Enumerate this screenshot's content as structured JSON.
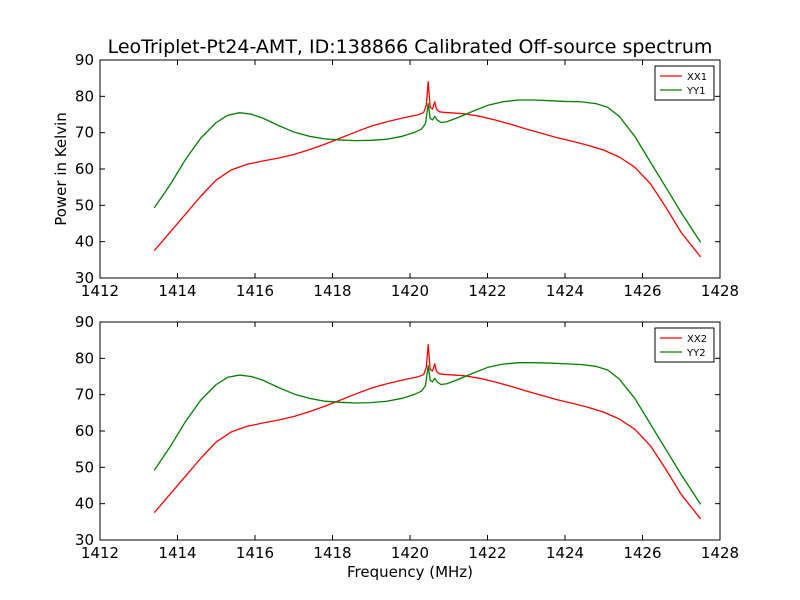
{
  "chart_data": {
    "title": "LeoTriplet-Pt24-AMT, ID:138866 Calibrated Off-source spectrum",
    "panels": [
      {
        "type": "line",
        "xlabel": "",
        "ylabel": "Power in Kelvin",
        "xlim": [
          1412,
          1428
        ],
        "ylim": [
          30,
          90
        ],
        "xticks": [
          1412,
          1414,
          1416,
          1418,
          1420,
          1422,
          1424,
          1426,
          1428
        ],
        "yticks": [
          30,
          40,
          50,
          60,
          70,
          80,
          90
        ],
        "legend": "top-right",
        "series": [
          {
            "name": "XX1",
            "color": "#ff0000",
            "x": [
              1413.4,
              1413.8,
              1414.2,
              1414.6,
              1415.0,
              1415.4,
              1415.8,
              1416.2,
              1416.6,
              1417.0,
              1417.4,
              1417.8,
              1418.2,
              1418.6,
              1419.0,
              1419.4,
              1419.8,
              1420.2,
              1420.35,
              1420.42,
              1420.47,
              1420.52,
              1420.58,
              1420.64,
              1420.68,
              1420.75,
              1420.85,
              1421.0,
              1421.4,
              1421.8,
              1422.2,
              1422.6,
              1423.0,
              1423.4,
              1423.8,
              1424.2,
              1424.6,
              1425.0,
              1425.4,
              1425.8,
              1426.2,
              1426.6,
              1427.0,
              1427.5
            ],
            "y": [
              37.5,
              42.5,
              47.5,
              52.5,
              57.0,
              59.8,
              61.3,
              62.2,
              63.0,
              64.0,
              65.3,
              66.8,
              68.5,
              70.2,
              71.8,
              73.0,
              74.0,
              74.9,
              75.5,
              77.5,
              84.0,
              77.0,
              76.5,
              78.5,
              76.5,
              75.8,
              75.6,
              75.5,
              75.2,
              74.5,
              73.5,
              72.3,
              71.0,
              69.8,
              68.6,
              67.6,
              66.5,
              65.2,
              63.3,
              60.5,
              56.0,
              49.5,
              42.5,
              35.8
            ]
          },
          {
            "name": "YY1",
            "color": "#008000",
            "x": [
              1413.4,
              1413.8,
              1414.2,
              1414.6,
              1415.0,
              1415.3,
              1415.6,
              1415.9,
              1416.2,
              1416.6,
              1417.0,
              1417.4,
              1417.8,
              1418.2,
              1418.6,
              1419.0,
              1419.4,
              1419.8,
              1420.1,
              1420.3,
              1420.4,
              1420.47,
              1420.52,
              1420.58,
              1420.64,
              1420.7,
              1420.8,
              1420.95,
              1421.2,
              1421.6,
              1422.0,
              1422.4,
              1422.8,
              1423.2,
              1423.6,
              1424.0,
              1424.4,
              1424.8,
              1425.1,
              1425.4,
              1425.8,
              1426.2,
              1426.6,
              1427.0,
              1427.5
            ],
            "y": [
              49.3,
              55.5,
              62.5,
              68.5,
              72.8,
              74.8,
              75.5,
              75.1,
              74.0,
              72.0,
              70.2,
              69.0,
              68.3,
              68.0,
              67.8,
              67.9,
              68.2,
              69.0,
              70.0,
              71.0,
              72.5,
              78.0,
              74.0,
              73.5,
              74.5,
              73.5,
              72.8,
              73.0,
              74.0,
              75.8,
              77.5,
              78.5,
              79.0,
              79.0,
              78.8,
              78.6,
              78.5,
              78.0,
              77.0,
              74.5,
              69.0,
              62.0,
              55.0,
              48.0,
              39.8
            ]
          }
        ]
      },
      {
        "type": "line",
        "xlabel": "Frequency (MHz)",
        "ylabel": "",
        "xlim": [
          1412,
          1428
        ],
        "ylim": [
          30,
          90
        ],
        "xticks": [
          1412,
          1414,
          1416,
          1418,
          1420,
          1422,
          1424,
          1426,
          1428
        ],
        "yticks": [
          30,
          40,
          50,
          60,
          70,
          80,
          90
        ],
        "legend": "top-right",
        "series": [
          {
            "name": "XX2",
            "color": "#ff0000",
            "x": [
              1413.4,
              1413.8,
              1414.2,
              1414.6,
              1415.0,
              1415.4,
              1415.8,
              1416.2,
              1416.6,
              1417.0,
              1417.4,
              1417.8,
              1418.2,
              1418.6,
              1419.0,
              1419.4,
              1419.8,
              1420.2,
              1420.35,
              1420.42,
              1420.47,
              1420.52,
              1420.58,
              1420.64,
              1420.68,
              1420.75,
              1420.85,
              1421.0,
              1421.4,
              1421.8,
              1422.2,
              1422.6,
              1423.0,
              1423.4,
              1423.8,
              1424.2,
              1424.6,
              1425.0,
              1425.4,
              1425.8,
              1426.2,
              1426.6,
              1427.0,
              1427.5
            ],
            "y": [
              37.5,
              42.5,
              47.5,
              52.5,
              57.0,
              59.8,
              61.3,
              62.2,
              63.0,
              64.0,
              65.3,
              66.8,
              68.5,
              70.2,
              71.8,
              73.0,
              74.0,
              74.9,
              75.5,
              77.5,
              83.8,
              77.0,
              76.5,
              78.5,
              76.5,
              75.8,
              75.6,
              75.5,
              75.2,
              74.5,
              73.5,
              72.3,
              71.0,
              69.8,
              68.6,
              67.6,
              66.5,
              65.2,
              63.3,
              60.5,
              56.0,
              49.5,
              42.5,
              35.8
            ]
          },
          {
            "name": "YY2",
            "color": "#008000",
            "x": [
              1413.4,
              1413.8,
              1414.2,
              1414.6,
              1415.0,
              1415.3,
              1415.6,
              1415.9,
              1416.2,
              1416.6,
              1417.0,
              1417.4,
              1417.8,
              1418.2,
              1418.6,
              1419.0,
              1419.4,
              1419.8,
              1420.1,
              1420.3,
              1420.4,
              1420.47,
              1420.52,
              1420.58,
              1420.64,
              1420.7,
              1420.8,
              1420.95,
              1421.2,
              1421.6,
              1422.0,
              1422.4,
              1422.8,
              1423.2,
              1423.6,
              1424.0,
              1424.4,
              1424.8,
              1425.1,
              1425.4,
              1425.8,
              1426.2,
              1426.6,
              1427.0,
              1427.5
            ],
            "y": [
              49.2,
              55.5,
              62.5,
              68.5,
              72.8,
              74.8,
              75.4,
              75.0,
              74.0,
              72.0,
              70.2,
              69.0,
              68.2,
              67.9,
              67.7,
              67.8,
              68.2,
              69.0,
              70.0,
              71.0,
              72.5,
              78.0,
              74.0,
              73.5,
              74.5,
              73.5,
              72.8,
              73.0,
              74.0,
              75.8,
              77.5,
              78.4,
              78.8,
              78.8,
              78.7,
              78.5,
              78.3,
              77.8,
              76.8,
              74.3,
              69.0,
              62.0,
              55.0,
              48.0,
              39.8
            ]
          }
        ]
      }
    ]
  }
}
